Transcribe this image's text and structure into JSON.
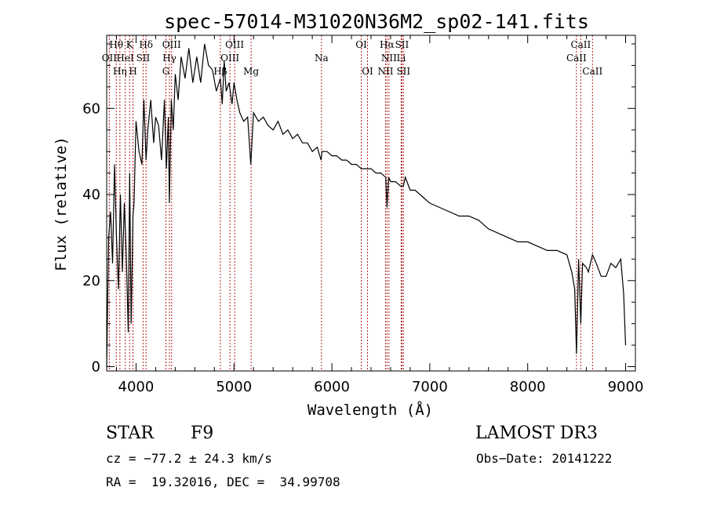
{
  "chart_data": {
    "type": "line",
    "title": "spec-57014-M31020N36M2_sp02-141.fits",
    "xlabel": "Wavelength (Å)",
    "ylabel": "Flux (relative)",
    "xlim": [
      3700,
      9100
    ],
    "ylim": [
      -1,
      77
    ],
    "xticks": [
      4000,
      5000,
      6000,
      7000,
      8000,
      9000
    ],
    "yticks": [
      0,
      20,
      40,
      60
    ],
    "series": [
      {
        "name": "flux",
        "x": [
          3700,
          3720,
          3740,
          3760,
          3780,
          3800,
          3820,
          3840,
          3860,
          3880,
          3900,
          3920,
          3935,
          3950,
          3968,
          3980,
          4000,
          4030,
          4060,
          4080,
          4102,
          4120,
          4150,
          4180,
          4200,
          4230,
          4260,
          4290,
          4310,
          4330,
          4340,
          4360,
          4380,
          4400,
          4430,
          4460,
          4500,
          4540,
          4580,
          4620,
          4660,
          4700,
          4740,
          4780,
          4820,
          4861,
          4880,
          4900,
          4920,
          4950,
          4980,
          5000,
          5030,
          5060,
          5100,
          5140,
          5172,
          5200,
          5250,
          5300,
          5350,
          5400,
          5450,
          5500,
          5550,
          5600,
          5650,
          5700,
          5750,
          5800,
          5850,
          5890,
          5900,
          5950,
          6000,
          6050,
          6100,
          6150,
          6200,
          6250,
          6300,
          6350,
          6400,
          6450,
          6500,
          6550,
          6563,
          6580,
          6600,
          6650,
          6700,
          6730,
          6750,
          6800,
          6850,
          6900,
          6950,
          7000,
          7100,
          7200,
          7300,
          7400,
          7500,
          7600,
          7700,
          7800,
          7900,
          8000,
          8100,
          8200,
          8300,
          8400,
          8450,
          8480,
          8498,
          8520,
          8542,
          8560,
          8600,
          8620,
          8662,
          8700,
          8750,
          8800,
          8850,
          8900,
          8950,
          8980,
          9000
        ],
        "y": [
          0,
          30,
          36,
          24,
          47,
          30,
          18,
          40,
          22,
          38,
          26,
          8,
          45,
          10,
          35,
          38,
          57,
          50,
          47,
          62,
          48,
          55,
          62,
          52,
          58,
          56,
          48,
          62,
          46,
          58,
          38,
          62,
          55,
          68,
          62,
          72,
          67,
          74,
          66,
          72,
          66,
          75,
          70,
          69,
          64,
          67,
          61,
          71,
          64,
          66,
          61,
          66,
          62,
          59,
          57,
          58,
          47,
          59,
          57,
          58,
          56,
          55,
          57,
          54,
          55,
          53,
          54,
          52,
          52,
          50,
          51,
          48,
          50,
          50,
          49,
          49,
          48,
          48,
          47,
          47,
          46,
          46,
          46,
          45,
          45,
          44,
          37,
          44,
          43,
          43,
          42,
          42,
          44,
          41,
          41,
          40,
          39,
          38,
          37,
          36,
          35,
          35,
          34,
          32,
          31,
          30,
          29,
          29,
          28,
          27,
          27,
          26,
          22,
          18,
          3,
          25,
          10,
          24,
          23,
          22,
          26,
          24,
          21,
          21,
          24,
          23,
          25,
          17,
          5
        ]
      }
    ],
    "lines": [
      {
        "name": "H-theta",
        "wave": 3798,
        "label": "Hθ",
        "row": 1
      },
      {
        "name": "OII",
        "wave": 3727,
        "label": "OII",
        "row": 2
      },
      {
        "name": "H-eta",
        "wave": 3835,
        "label": "Hη",
        "row": 3
      },
      {
        "name": "HeI",
        "wave": 3889,
        "label": "HeI",
        "row": 2
      },
      {
        "name": "K",
        "wave": 3934,
        "label": "K",
        "row": 1
      },
      {
        "name": "H",
        "wave": 3969,
        "label": "H",
        "row": 3
      },
      {
        "name": "SII-4072",
        "wave": 4072,
        "label": "SII",
        "row": 2
      },
      {
        "name": "H-delta",
        "wave": 4102,
        "label": "Hδ",
        "row": 1
      },
      {
        "name": "G",
        "wave": 4305,
        "label": "G",
        "row": 3
      },
      {
        "name": "H-gamma",
        "wave": 4341,
        "label": "Hγ",
        "row": 2
      },
      {
        "name": "OIII-4363",
        "wave": 4363,
        "label": "OIII",
        "row": 1
      },
      {
        "name": "H-beta",
        "wave": 4861,
        "label": "Hβ",
        "row": 3
      },
      {
        "name": "OIII-4959",
        "wave": 4959,
        "label": "OIII",
        "row": 2
      },
      {
        "name": "OIII-5007",
        "wave": 5007,
        "label": "OIII",
        "row": 1
      },
      {
        "name": "Mg",
        "wave": 5175,
        "label": "Mg",
        "row": 3
      },
      {
        "name": "Na",
        "wave": 5894,
        "label": "Na",
        "row": 2
      },
      {
        "name": "OI-6300",
        "wave": 6300,
        "label": "OI",
        "row": 1
      },
      {
        "name": "OI-6364",
        "wave": 6364,
        "label": "OI",
        "row": 3
      },
      {
        "name": "NII-6548",
        "wave": 6548,
        "label": "NII",
        "row": 3
      },
      {
        "name": "H-alpha",
        "wave": 6563,
        "label": "Hα",
        "row": 1
      },
      {
        "name": "NII-6583",
        "wave": 6583,
        "label": "NII",
        "row": 2
      },
      {
        "name": "Li",
        "wave": 6708,
        "label": "Li",
        "row": 2
      },
      {
        "name": "SII-6716",
        "wave": 6716,
        "label": "SII",
        "row": 1
      },
      {
        "name": "SII-6731",
        "wave": 6731,
        "label": "SII",
        "row": 3
      },
      {
        "name": "CaII-8498",
        "wave": 8498,
        "label": "CaII",
        "row": 2
      },
      {
        "name": "CaII-8542",
        "wave": 8542,
        "label": "CaII",
        "row": 1
      },
      {
        "name": "CaII-8662",
        "wave": 8662,
        "label": "CaII",
        "row": 3
      }
    ],
    "line_color": "#b22222",
    "grid": false
  },
  "info": {
    "class": "STAR",
    "subclass": "F9",
    "survey": "LAMOST DR3",
    "cz": "cz = −77.2 ± 24.3 km/s",
    "obs_date": "Obs−Date: 20141222",
    "coords": "RA =  19.32016, DEC =  34.99708"
  }
}
